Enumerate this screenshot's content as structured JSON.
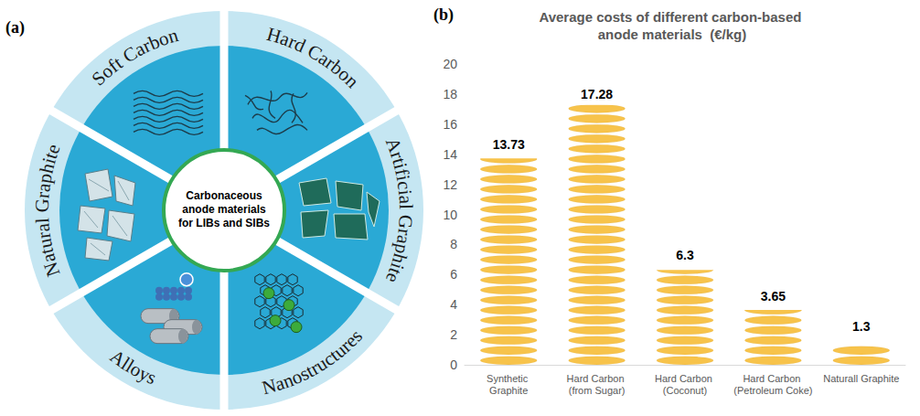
{
  "panel_labels": [
    "(a)",
    "(b)"
  ],
  "diagram": {
    "center": "Carbonaceous anode materials for LIBs and SIBs",
    "segments": [
      "Soft Carbon",
      "Hard Carbon",
      "Artificial Graphite",
      "Nanostructures",
      "Alloys",
      "Natural Graphite"
    ]
  },
  "chart_data": {
    "type": "bar",
    "title": "Average costs of different carbon-based anode materials  (€/kg)",
    "categories": [
      "Synthetic Graphite",
      "Hard Carbon (from Sugar)",
      "Hard Carbon (Coconut)",
      "Hard Carbon (Petroleum Coke)",
      "Naturall Graphite"
    ],
    "values": [
      13.73,
      17.28,
      6.3,
      3.65,
      1.3
    ],
    "color": "#f7c34b",
    "ylim": [
      0,
      20
    ],
    "yticks": [
      0,
      2,
      4,
      6,
      8,
      10,
      12,
      14,
      16,
      18,
      20
    ],
    "grid": false,
    "data_labels": true
  }
}
